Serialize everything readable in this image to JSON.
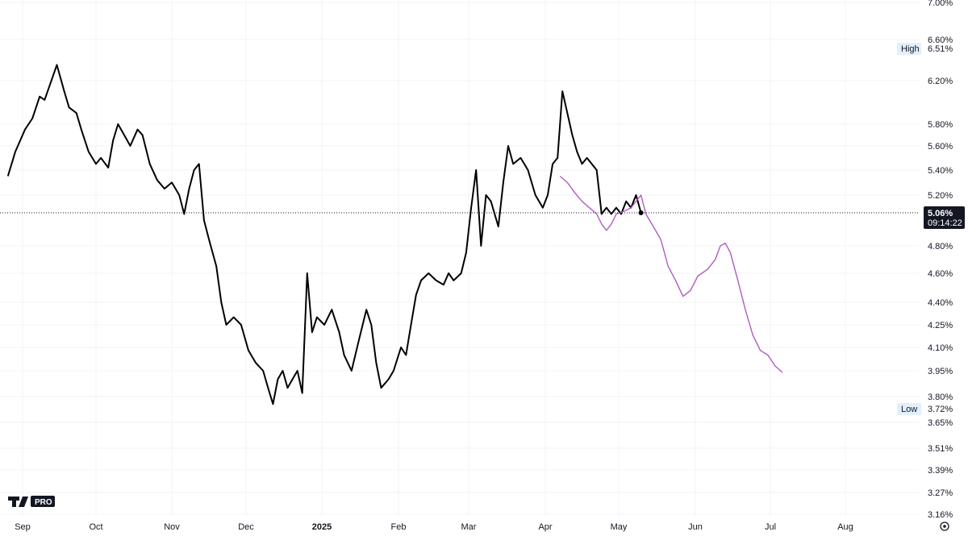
{
  "chart_data": {
    "type": "line",
    "x_labels": [
      "Sep",
      "Oct",
      "Nov",
      "Dec",
      "2025",
      "Feb",
      "Mar",
      "Apr",
      "May",
      "Jun",
      "Jul",
      "Aug"
    ],
    "y_ticks": [
      "7.00%",
      "6.60%",
      "6.20%",
      "5.80%",
      "5.60%",
      "5.40%",
      "5.20%",
      "4.80%",
      "4.60%",
      "4.40%",
      "4.25%",
      "4.10%",
      "3.95%",
      "3.80%",
      "3.65%",
      "3.51%",
      "3.39%",
      "3.27%",
      "3.16%"
    ],
    "y_scale": "log",
    "ylim": [
      3.16,
      7.0
    ],
    "high": {
      "label": "High",
      "value": "6.51%"
    },
    "low": {
      "label": "Low",
      "value": "3.72%"
    },
    "last_price": {
      "value": "5.06%",
      "countdown": "09:14:22"
    },
    "grid": true,
    "series": [
      {
        "color": "#000000",
        "points": [
          [
            "2024-08-26",
            5.35
          ],
          [
            "2024-08-29",
            5.55
          ],
          [
            "2024-09-02",
            5.75
          ],
          [
            "2024-09-05",
            5.85
          ],
          [
            "2024-09-08",
            6.05
          ],
          [
            "2024-09-10",
            6.02
          ],
          [
            "2024-09-12",
            6.15
          ],
          [
            "2024-09-15",
            6.35
          ],
          [
            "2024-09-18",
            6.1
          ],
          [
            "2024-09-20",
            5.95
          ],
          [
            "2024-09-23",
            5.9
          ],
          [
            "2024-09-25",
            5.75
          ],
          [
            "2024-09-28",
            5.55
          ],
          [
            "2024-10-01",
            5.45
          ],
          [
            "2024-10-03",
            5.5
          ],
          [
            "2024-10-06",
            5.42
          ],
          [
            "2024-10-08",
            5.65
          ],
          [
            "2024-10-10",
            5.8
          ],
          [
            "2024-10-12",
            5.72
          ],
          [
            "2024-10-15",
            5.6
          ],
          [
            "2024-10-18",
            5.75
          ],
          [
            "2024-10-20",
            5.7
          ],
          [
            "2024-10-23",
            5.45
          ],
          [
            "2024-10-26",
            5.32
          ],
          [
            "2024-10-29",
            5.25
          ],
          [
            "2024-11-01",
            5.3
          ],
          [
            "2024-11-04",
            5.2
          ],
          [
            "2024-11-06",
            5.05
          ],
          [
            "2024-11-08",
            5.25
          ],
          [
            "2024-11-10",
            5.4
          ],
          [
            "2024-11-12",
            5.45
          ],
          [
            "2024-11-14",
            5.0
          ],
          [
            "2024-11-16",
            4.85
          ],
          [
            "2024-11-19",
            4.65
          ],
          [
            "2024-11-21",
            4.4
          ],
          [
            "2024-11-23",
            4.25
          ],
          [
            "2024-11-26",
            4.3
          ],
          [
            "2024-11-29",
            4.25
          ],
          [
            "2024-12-02",
            4.08
          ],
          [
            "2024-12-05",
            4.0
          ],
          [
            "2024-12-08",
            3.95
          ],
          [
            "2024-12-10",
            3.85
          ],
          [
            "2024-12-12",
            3.75
          ],
          [
            "2024-12-14",
            3.9
          ],
          [
            "2024-12-16",
            3.95
          ],
          [
            "2024-12-18",
            3.85
          ],
          [
            "2024-12-20",
            3.9
          ],
          [
            "2024-12-22",
            3.95
          ],
          [
            "2024-12-24",
            3.82
          ],
          [
            "2024-12-26",
            4.6
          ],
          [
            "2024-12-28",
            4.2
          ],
          [
            "2024-12-30",
            4.3
          ],
          [
            "2025-01-02",
            4.25
          ],
          [
            "2025-01-05",
            4.35
          ],
          [
            "2025-01-08",
            4.2
          ],
          [
            "2025-01-10",
            4.05
          ],
          [
            "2025-01-13",
            3.95
          ],
          [
            "2025-01-16",
            4.15
          ],
          [
            "2025-01-19",
            4.35
          ],
          [
            "2025-01-21",
            4.25
          ],
          [
            "2025-01-23",
            4.0
          ],
          [
            "2025-01-25",
            3.85
          ],
          [
            "2025-01-28",
            3.9
          ],
          [
            "2025-01-30",
            3.95
          ],
          [
            "2025-02-02",
            4.1
          ],
          [
            "2025-02-04",
            4.05
          ],
          [
            "2025-02-06",
            4.25
          ],
          [
            "2025-02-08",
            4.45
          ],
          [
            "2025-02-10",
            4.55
          ],
          [
            "2025-02-13",
            4.6
          ],
          [
            "2025-02-16",
            4.55
          ],
          [
            "2025-02-19",
            4.52
          ],
          [
            "2025-02-21",
            4.6
          ],
          [
            "2025-02-23",
            4.55
          ],
          [
            "2025-02-26",
            4.6
          ],
          [
            "2025-02-28",
            4.75
          ],
          [
            "2025-03-02",
            5.1
          ],
          [
            "2025-03-04",
            5.4
          ],
          [
            "2025-03-06",
            4.8
          ],
          [
            "2025-03-08",
            5.2
          ],
          [
            "2025-03-10",
            5.15
          ],
          [
            "2025-03-13",
            4.95
          ],
          [
            "2025-03-15",
            5.3
          ],
          [
            "2025-03-17",
            5.6
          ],
          [
            "2025-03-19",
            5.45
          ],
          [
            "2025-03-22",
            5.5
          ],
          [
            "2025-03-25",
            5.4
          ],
          [
            "2025-03-28",
            5.2
          ],
          [
            "2025-03-31",
            5.1
          ],
          [
            "2025-04-02",
            5.2
          ],
          [
            "2025-04-04",
            5.45
          ],
          [
            "2025-04-06",
            5.5
          ],
          [
            "2025-04-08",
            6.1
          ],
          [
            "2025-04-10",
            5.9
          ],
          [
            "2025-04-12",
            5.7
          ],
          [
            "2025-04-14",
            5.55
          ],
          [
            "2025-04-16",
            5.45
          ],
          [
            "2025-04-18",
            5.5
          ],
          [
            "2025-04-20",
            5.45
          ],
          [
            "2025-04-22",
            5.4
          ],
          [
            "2025-04-24",
            5.05
          ],
          [
            "2025-04-26",
            5.1
          ],
          [
            "2025-04-28",
            5.05
          ],
          [
            "2025-04-30",
            5.1
          ],
          [
            "2025-05-02",
            5.05
          ],
          [
            "2025-05-04",
            5.15
          ],
          [
            "2025-05-06",
            5.1
          ],
          [
            "2025-05-08",
            5.2
          ],
          [
            "2025-05-10",
            5.06
          ]
        ]
      },
      {
        "color": "#b05ac2",
        "points": [
          [
            "2025-04-07",
            5.35
          ],
          [
            "2025-04-10",
            5.3
          ],
          [
            "2025-04-13",
            5.22
          ],
          [
            "2025-04-16",
            5.15
          ],
          [
            "2025-04-19",
            5.1
          ],
          [
            "2025-04-22",
            5.05
          ],
          [
            "2025-04-24",
            4.97
          ],
          [
            "2025-04-26",
            4.92
          ],
          [
            "2025-04-28",
            4.97
          ],
          [
            "2025-04-30",
            5.05
          ],
          [
            "2025-05-03",
            5.07
          ],
          [
            "2025-05-06",
            5.1
          ],
          [
            "2025-05-08",
            5.15
          ],
          [
            "2025-05-10",
            5.2
          ],
          [
            "2025-05-12",
            5.05
          ],
          [
            "2025-05-15",
            4.95
          ],
          [
            "2025-05-18",
            4.85
          ],
          [
            "2025-05-21",
            4.65
          ],
          [
            "2025-05-24",
            4.55
          ],
          [
            "2025-05-27",
            4.44
          ],
          [
            "2025-05-30",
            4.48
          ],
          [
            "2025-06-02",
            4.58
          ],
          [
            "2025-06-06",
            4.63
          ],
          [
            "2025-06-09",
            4.7
          ],
          [
            "2025-06-11",
            4.8
          ],
          [
            "2025-06-13",
            4.82
          ],
          [
            "2025-06-15",
            4.75
          ],
          [
            "2025-06-18",
            4.55
          ],
          [
            "2025-06-21",
            4.35
          ],
          [
            "2025-06-24",
            4.18
          ],
          [
            "2025-06-27",
            4.08
          ],
          [
            "2025-06-30",
            4.05
          ],
          [
            "2025-07-03",
            3.98
          ],
          [
            "2025-07-06",
            3.94
          ]
        ]
      }
    ]
  }
}
